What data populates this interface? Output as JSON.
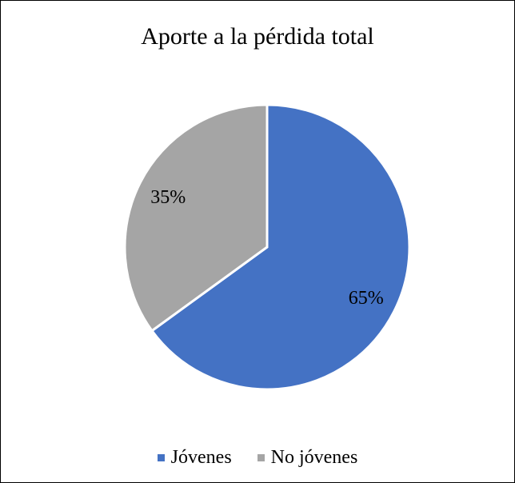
{
  "chart_data": {
    "type": "pie",
    "title": "Aporte a la pérdida total",
    "categories": [
      "Jóvenes",
      "No jóvenes"
    ],
    "values": [
      65,
      35
    ],
    "data_labels": [
      "65%",
      "35%"
    ],
    "colors": [
      "#4472C4",
      "#A5A5A5"
    ],
    "legend_position": "bottom"
  }
}
